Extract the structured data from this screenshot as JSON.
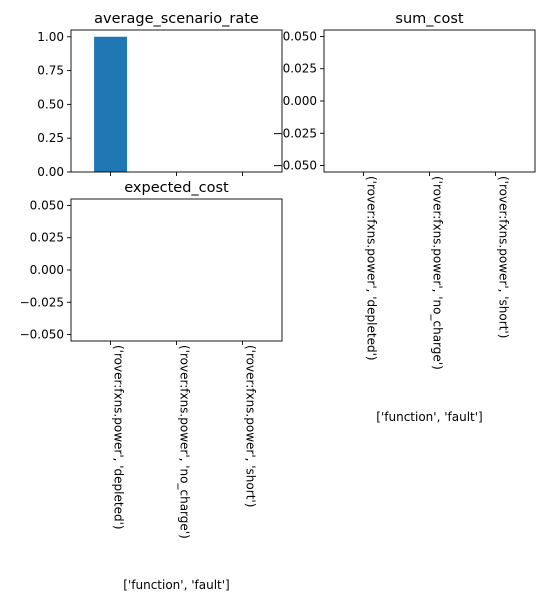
{
  "chart_data": [
    {
      "type": "bar",
      "title": "average_scenario_rate",
      "categories": [
        "('rover:fxns.power', 'depleted')",
        "('rover:fxns.power', 'no_charge')",
        "('rover:fxns.power', 'short')"
      ],
      "values": [
        1.0,
        0.0,
        0.0
      ],
      "ylim": [
        0,
        1.05
      ],
      "yticks": [
        "0.00",
        "0.25",
        "0.50",
        "0.75",
        "1.00"
      ],
      "ytick_values": [
        0,
        0.25,
        0.5,
        0.75,
        1.0
      ],
      "xlabel": "",
      "show_xticklabels": false,
      "bar_color": "#1f77b4"
    },
    {
      "type": "bar",
      "title": "sum_cost",
      "categories": [
        "('rover:fxns.power', 'depleted')",
        "('rover:fxns.power', 'no_charge')",
        "('rover:fxns.power', 'short')"
      ],
      "values": [
        0,
        0,
        0
      ],
      "ylim": [
        -0.055,
        0.055
      ],
      "yticks": [
        "−0.050",
        "−0.025",
        "0.000",
        "0.025",
        "0.050"
      ],
      "ytick_values": [
        -0.05,
        -0.025,
        0,
        0.025,
        0.05
      ],
      "xlabel": "['function', 'fault']",
      "show_xticklabels": true,
      "bar_color": "#1f77b4"
    },
    {
      "type": "bar",
      "title": "expected_cost",
      "categories": [
        "('rover:fxns.power', 'depleted')",
        "('rover:fxns.power', 'no_charge')",
        "('rover:fxns.power', 'short')"
      ],
      "values": [
        0,
        0,
        0
      ],
      "ylim": [
        -0.055,
        0.055
      ],
      "yticks": [
        "−0.050",
        "−0.025",
        "0.000",
        "0.025",
        "0.050"
      ],
      "ytick_values": [
        -0.05,
        -0.025,
        0,
        0.025,
        0.05
      ],
      "xlabel": "['function', 'fault']",
      "show_xticklabels": true,
      "bar_color": "#1f77b4"
    }
  ]
}
